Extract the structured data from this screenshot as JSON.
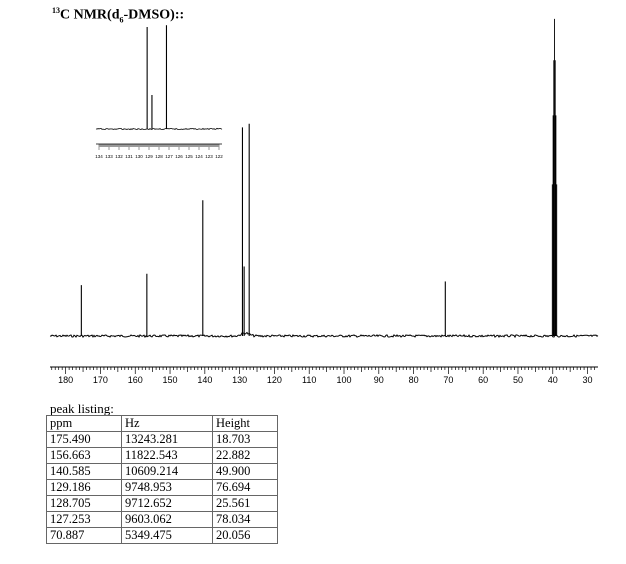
{
  "title": {
    "iso": "13",
    "pre": "C NMR(d",
    "sub": "6",
    "post": "-DMSO)::"
  },
  "chart_data": {
    "type": "line",
    "xlabel": "",
    "ylabel": "",
    "x_ticks": [
      "180",
      "170",
      "160",
      "150",
      "140",
      "130",
      "120",
      "110",
      "100",
      "90",
      "80",
      "70",
      "60",
      "50",
      "40",
      "30"
    ],
    "x_reversed": true,
    "peaks": [
      {
        "ppm": 175.49,
        "height": 18.703
      },
      {
        "ppm": 156.663,
        "height": 22.882
      },
      {
        "ppm": 140.585,
        "height": 49.9
      },
      {
        "ppm": 129.186,
        "height": 76.694
      },
      {
        "ppm": 128.705,
        "height": 25.561
      },
      {
        "ppm": 127.253,
        "height": 78.034
      },
      {
        "ppm": 70.887,
        "height": 20.056
      },
      {
        "ppm": 39.5,
        "height": 110
      }
    ],
    "inset": {
      "x_ticks": [
        "134",
        "133",
        "132",
        "131",
        "130",
        "129",
        "128",
        "127",
        "126",
        "125",
        "124",
        "123",
        "122"
      ],
      "peaks": [
        {
          "ppm": 129.186,
          "height": 76.694
        },
        {
          "ppm": 128.705,
          "height": 25.561
        },
        {
          "ppm": 127.253,
          "height": 78.034
        }
      ]
    }
  },
  "peak_listing": {
    "title": "peak listing:",
    "headers": [
      "ppm",
      "Hz",
      "Height"
    ],
    "rows": [
      [
        "175.490",
        "13243.281",
        "18.703"
      ],
      [
        "156.663",
        "11822.543",
        "22.882"
      ],
      [
        "140.585",
        "10609.214",
        "49.900"
      ],
      [
        "129.186",
        "9748.953",
        "76.694"
      ],
      [
        "128.705",
        "9712.652",
        "25.561"
      ],
      [
        "127.253",
        "9603.062",
        "78.034"
      ],
      [
        "70.887",
        "5349.475",
        "20.056"
      ]
    ]
  }
}
